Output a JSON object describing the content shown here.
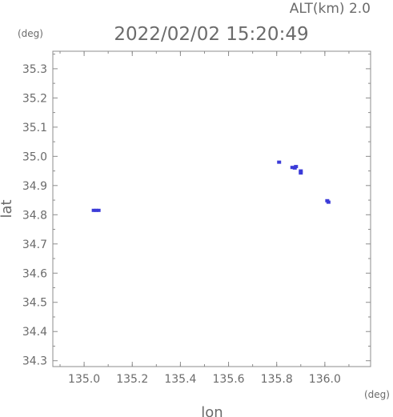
{
  "chart_data": {
    "type": "scatter",
    "title": "2022/02/02 15:20:49",
    "subtitle": "ALT(km) 2.0",
    "xlabel": "lon",
    "ylabel": "lat",
    "x_unit": "(deg)",
    "y_unit": "(deg)",
    "xlim": [
      134.87,
      136.19
    ],
    "ylim": [
      34.28,
      35.36
    ],
    "xticks": [
      "135.0",
      "135.2",
      "135.4",
      "135.6",
      "135.8",
      "136.0"
    ],
    "yticks": [
      "34.3",
      "34.4",
      "34.5",
      "34.6",
      "34.7",
      "34.8",
      "34.9",
      "35.0",
      "35.1",
      "35.2",
      "35.3"
    ],
    "grid": false,
    "series": [
      {
        "color": "#3b3bd8",
        "points": [
          {
            "x": 135.04,
            "y": 34.815
          },
          {
            "x": 135.05,
            "y": 34.815
          },
          {
            "x": 135.06,
            "y": 34.815
          },
          {
            "x": 135.81,
            "y": 34.98
          },
          {
            "x": 135.865,
            "y": 34.962
          },
          {
            "x": 135.875,
            "y": 34.96
          },
          {
            "x": 135.88,
            "y": 34.965
          },
          {
            "x": 135.9,
            "y": 34.95
          },
          {
            "x": 135.9,
            "y": 34.943
          },
          {
            "x": 136.01,
            "y": 34.848
          },
          {
            "x": 136.015,
            "y": 34.843
          }
        ]
      }
    ]
  }
}
